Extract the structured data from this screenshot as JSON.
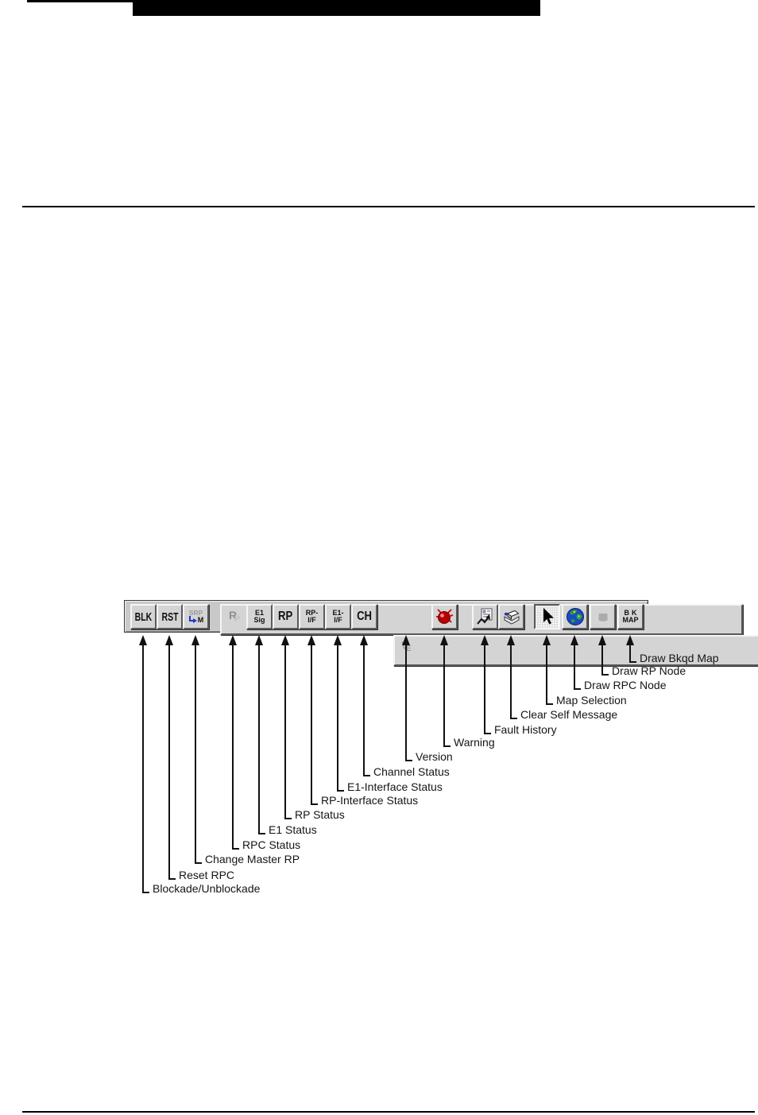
{
  "toolbar": {
    "buttons": [
      {
        "name": "blockade-unblockade",
        "style": "txt-lg",
        "state": "normal",
        "lines": [
          "BLK"
        ],
        "callout": "Blockade/Unblockade"
      },
      {
        "name": "reset-rpc",
        "style": "txt-lg",
        "state": "normal",
        "lines": [
          "RST"
        ],
        "callout": "Reset RPC"
      },
      {
        "name": "change-master-rp",
        "style": "srp",
        "state": "normal",
        "lines": [
          "SRP",
          "M"
        ],
        "icon": "blue-elbow-arrow-icon",
        "accent_color": "#2233cc",
        "callout": "Change Master RP"
      },
      {
        "name": "rpc-status",
        "style": "mono2",
        "state": "disabled",
        "lines": [
          "R",
          "P"
        ],
        "callout": "RPC Status"
      },
      {
        "name": "e1-status",
        "style": "txt-2line",
        "state": "normal",
        "lines": [
          "E1",
          "Sig"
        ],
        "callout": "E1 Status"
      },
      {
        "name": "rp-status",
        "style": "txt-xl",
        "state": "normal",
        "lines": [
          "RP"
        ],
        "callout": "RP Status"
      },
      {
        "name": "rp-interface-status",
        "style": "txt-2line",
        "state": "normal",
        "lines": [
          "RP-",
          "I/F"
        ],
        "callout": "RP-Interface Status"
      },
      {
        "name": "e1-interface-status",
        "style": "txt-2line",
        "state": "normal",
        "lines": [
          "E1-",
          "I/F"
        ],
        "callout": "E1-Interface Status"
      },
      {
        "name": "channel-status",
        "style": "txt-xl",
        "state": "normal",
        "lines": [
          "CH"
        ],
        "callout": "Channel Status"
      },
      {
        "name": "version",
        "style": "mono2",
        "state": "disabled",
        "lines": [
          "V",
          "E"
        ],
        "callout": "Version"
      },
      {
        "name": "warning",
        "style": "icon",
        "state": "normal",
        "icon": "alarm-ball-icon",
        "icon_color": "#bb0000",
        "callout": "Warning"
      },
      {
        "name": "fault-history",
        "style": "icon",
        "state": "normal",
        "icon": "fault-list-icon",
        "callout": "Fault History"
      },
      {
        "name": "clear-self-message",
        "style": "icon",
        "state": "normal",
        "icon": "message-eraser-icon",
        "accent_color": "#2233cc",
        "callout": "Clear Self Message"
      },
      {
        "name": "map-selection",
        "style": "icon",
        "state": "pressed",
        "icon": "arrow-cursor-icon",
        "callout": "Map Selection"
      },
      {
        "name": "draw-rpc-node",
        "style": "icon",
        "state": "normal",
        "icon": "globe-icon",
        "icon_color": "#1d49c8",
        "callout": "Draw RPC Node"
      },
      {
        "name": "draw-rp-node",
        "style": "icon",
        "state": "disabled",
        "icon": "node-shape-icon",
        "icon_color": "#b5b5b5",
        "callout": "Draw RP Node"
      },
      {
        "name": "draw-bkgd-map",
        "style": "txt-2line",
        "state": "normal",
        "lines": [
          "BK",
          "MAP"
        ],
        "callout": "Draw Bkqd Map"
      }
    ]
  }
}
